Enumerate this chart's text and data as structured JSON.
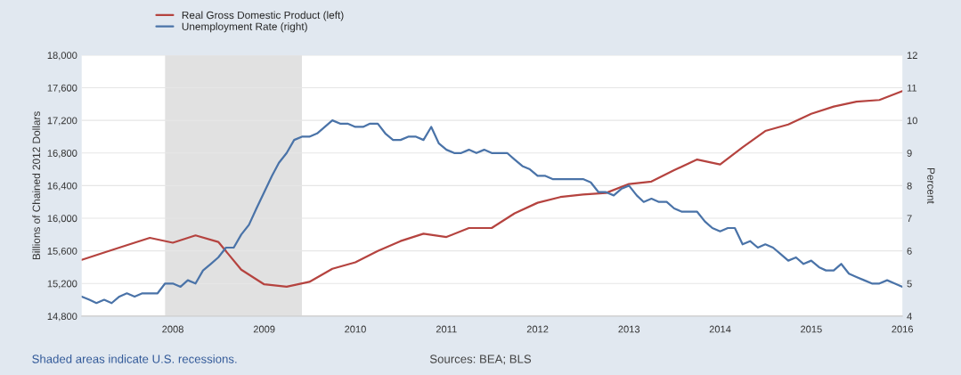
{
  "chart_data": {
    "type": "line",
    "ylabel": "Billions of Chained 2012 Dollars",
    "y2label": "Percent",
    "x": [
      "2007-01",
      "2007-04",
      "2007-07",
      "2007-10",
      "2008-01",
      "2008-04",
      "2008-07",
      "2008-10",
      "2009-01",
      "2009-04",
      "2009-07",
      "2009-10",
      "2010-01",
      "2010-04",
      "2010-07",
      "2010-10",
      "2011-01",
      "2011-04",
      "2011-07",
      "2011-10",
      "2012-01",
      "2012-04",
      "2012-07",
      "2012-10",
      "2013-01",
      "2013-04",
      "2013-07",
      "2013-10",
      "2014-01",
      "2014-04",
      "2014-07",
      "2014-10",
      "2015-01",
      "2015-04",
      "2015-07",
      "2015-10",
      "2016-01"
    ],
    "series": [
      {
        "name": "Real Gross Domestic Product (left)",
        "color": "#b5433f",
        "values": [
          15490,
          15580,
          15670,
          15760,
          15700,
          15790,
          15710,
          15370,
          15190,
          15160,
          15220,
          15380,
          15460,
          15600,
          15720,
          15810,
          15770,
          15880,
          15880,
          16060,
          16190,
          16260,
          16290,
          16310,
          16420,
          16450,
          16590,
          16720,
          16660,
          16870,
          17070,
          17150,
          17280,
          17370,
          17430,
          17450,
          17560
        ]
      },
      {
        "name": "Unemployment Rate (right)",
        "color": "#4a73a8",
        "axis": "y2",
        "x": [
          "2007-01",
          "2007-02",
          "2007-03",
          "2007-04",
          "2007-05",
          "2007-06",
          "2007-07",
          "2007-08",
          "2007-09",
          "2007-10",
          "2007-11",
          "2007-12",
          "2008-01",
          "2008-02",
          "2008-03",
          "2008-04",
          "2008-05",
          "2008-06",
          "2008-07",
          "2008-08",
          "2008-09",
          "2008-10",
          "2008-11",
          "2008-12",
          "2009-01",
          "2009-02",
          "2009-03",
          "2009-04",
          "2009-05",
          "2009-06",
          "2009-07",
          "2009-08",
          "2009-09",
          "2009-10",
          "2009-11",
          "2009-12",
          "2010-01",
          "2010-02",
          "2010-03",
          "2010-04",
          "2010-05",
          "2010-06",
          "2010-07",
          "2010-08",
          "2010-09",
          "2010-10",
          "2010-11",
          "2010-12",
          "2011-01",
          "2011-02",
          "2011-03",
          "2011-04",
          "2011-05",
          "2011-06",
          "2011-07",
          "2011-08",
          "2011-09",
          "2011-10",
          "2011-11",
          "2011-12",
          "2012-01",
          "2012-02",
          "2012-03",
          "2012-04",
          "2012-05",
          "2012-06",
          "2012-07",
          "2012-08",
          "2012-09",
          "2012-10",
          "2012-11",
          "2012-12",
          "2013-01",
          "2013-02",
          "2013-03",
          "2013-04",
          "2013-05",
          "2013-06",
          "2013-07",
          "2013-08",
          "2013-09",
          "2013-10",
          "2013-11",
          "2013-12",
          "2014-01",
          "2014-02",
          "2014-03",
          "2014-04",
          "2014-05",
          "2014-06",
          "2014-07",
          "2014-08",
          "2014-09",
          "2014-10",
          "2014-11",
          "2014-12",
          "2015-01",
          "2015-02",
          "2015-03",
          "2015-04",
          "2015-05",
          "2015-06",
          "2015-07",
          "2015-08",
          "2015-09",
          "2015-10",
          "2015-11",
          "2015-12",
          "2016-01"
        ],
        "values": [
          4.6,
          4.5,
          4.4,
          4.5,
          4.4,
          4.6,
          4.7,
          4.6,
          4.7,
          4.7,
          4.7,
          5.0,
          5.0,
          4.9,
          5.1,
          5.0,
          5.4,
          5.6,
          5.8,
          6.1,
          6.1,
          6.5,
          6.8,
          7.3,
          7.8,
          8.3,
          8.7,
          9.0,
          9.4,
          9.5,
          9.5,
          9.6,
          9.8,
          10.0,
          9.9,
          9.9,
          9.8,
          9.8,
          9.9,
          9.9,
          9.6,
          9.4,
          9.4,
          9.5,
          9.5,
          9.4,
          9.8,
          9.3,
          9.1,
          9.0,
          9.0,
          9.1,
          9.0,
          9.1,
          9.0,
          9.0,
          9.0,
          8.8,
          8.6,
          8.5,
          8.3,
          8.3,
          8.2,
          8.2,
          8.2,
          8.2,
          8.2,
          8.1,
          7.8,
          7.8,
          7.7,
          7.9,
          8.0,
          7.7,
          7.5,
          7.6,
          7.5,
          7.5,
          7.3,
          7.2,
          7.2,
          7.2,
          6.9,
          6.7,
          6.6,
          6.7,
          6.7,
          6.2,
          6.3,
          6.1,
          6.2,
          6.1,
          5.9,
          5.7,
          5.8,
          5.6,
          5.7,
          5.5,
          5.4,
          5.4,
          5.6,
          5.3,
          5.2,
          5.1,
          5.0,
          5.0,
          5.1,
          5.0,
          4.9
        ]
      }
    ],
    "xlim": [
      "2007-01",
      "2016-01"
    ],
    "xticks": [
      "2008",
      "2009",
      "2010",
      "2011",
      "2012",
      "2013",
      "2014",
      "2015",
      "2016"
    ],
    "ylim": [
      14800,
      18000
    ],
    "yticks": [
      {
        "value": 14800,
        "label": "14,800"
      },
      {
        "value": 15200,
        "label": "15,200"
      },
      {
        "value": 15600,
        "label": "15,600"
      },
      {
        "value": 16000,
        "label": "16,000"
      },
      {
        "value": 16400,
        "label": "16,400"
      },
      {
        "value": 16800,
        "label": "16,800"
      },
      {
        "value": 17200,
        "label": "17,200"
      },
      {
        "value": 17600,
        "label": "17,600"
      },
      {
        "value": 18000,
        "label": "18,000"
      }
    ],
    "y2lim": [
      4,
      12
    ],
    "y2ticks": [
      4,
      5,
      6,
      7,
      8,
      9,
      10,
      11,
      12
    ],
    "bands": [
      {
        "axis": "x",
        "from": "2007-12",
        "to": "2009-06",
        "color": "#e1e1e1"
      }
    ],
    "annotations": [
      "Shaded areas indicate U.S. recessions.",
      "Sources: BEA; BLS"
    ],
    "grid": "y",
    "legend": "top left",
    "line_style": "solid",
    "marker": "none"
  }
}
